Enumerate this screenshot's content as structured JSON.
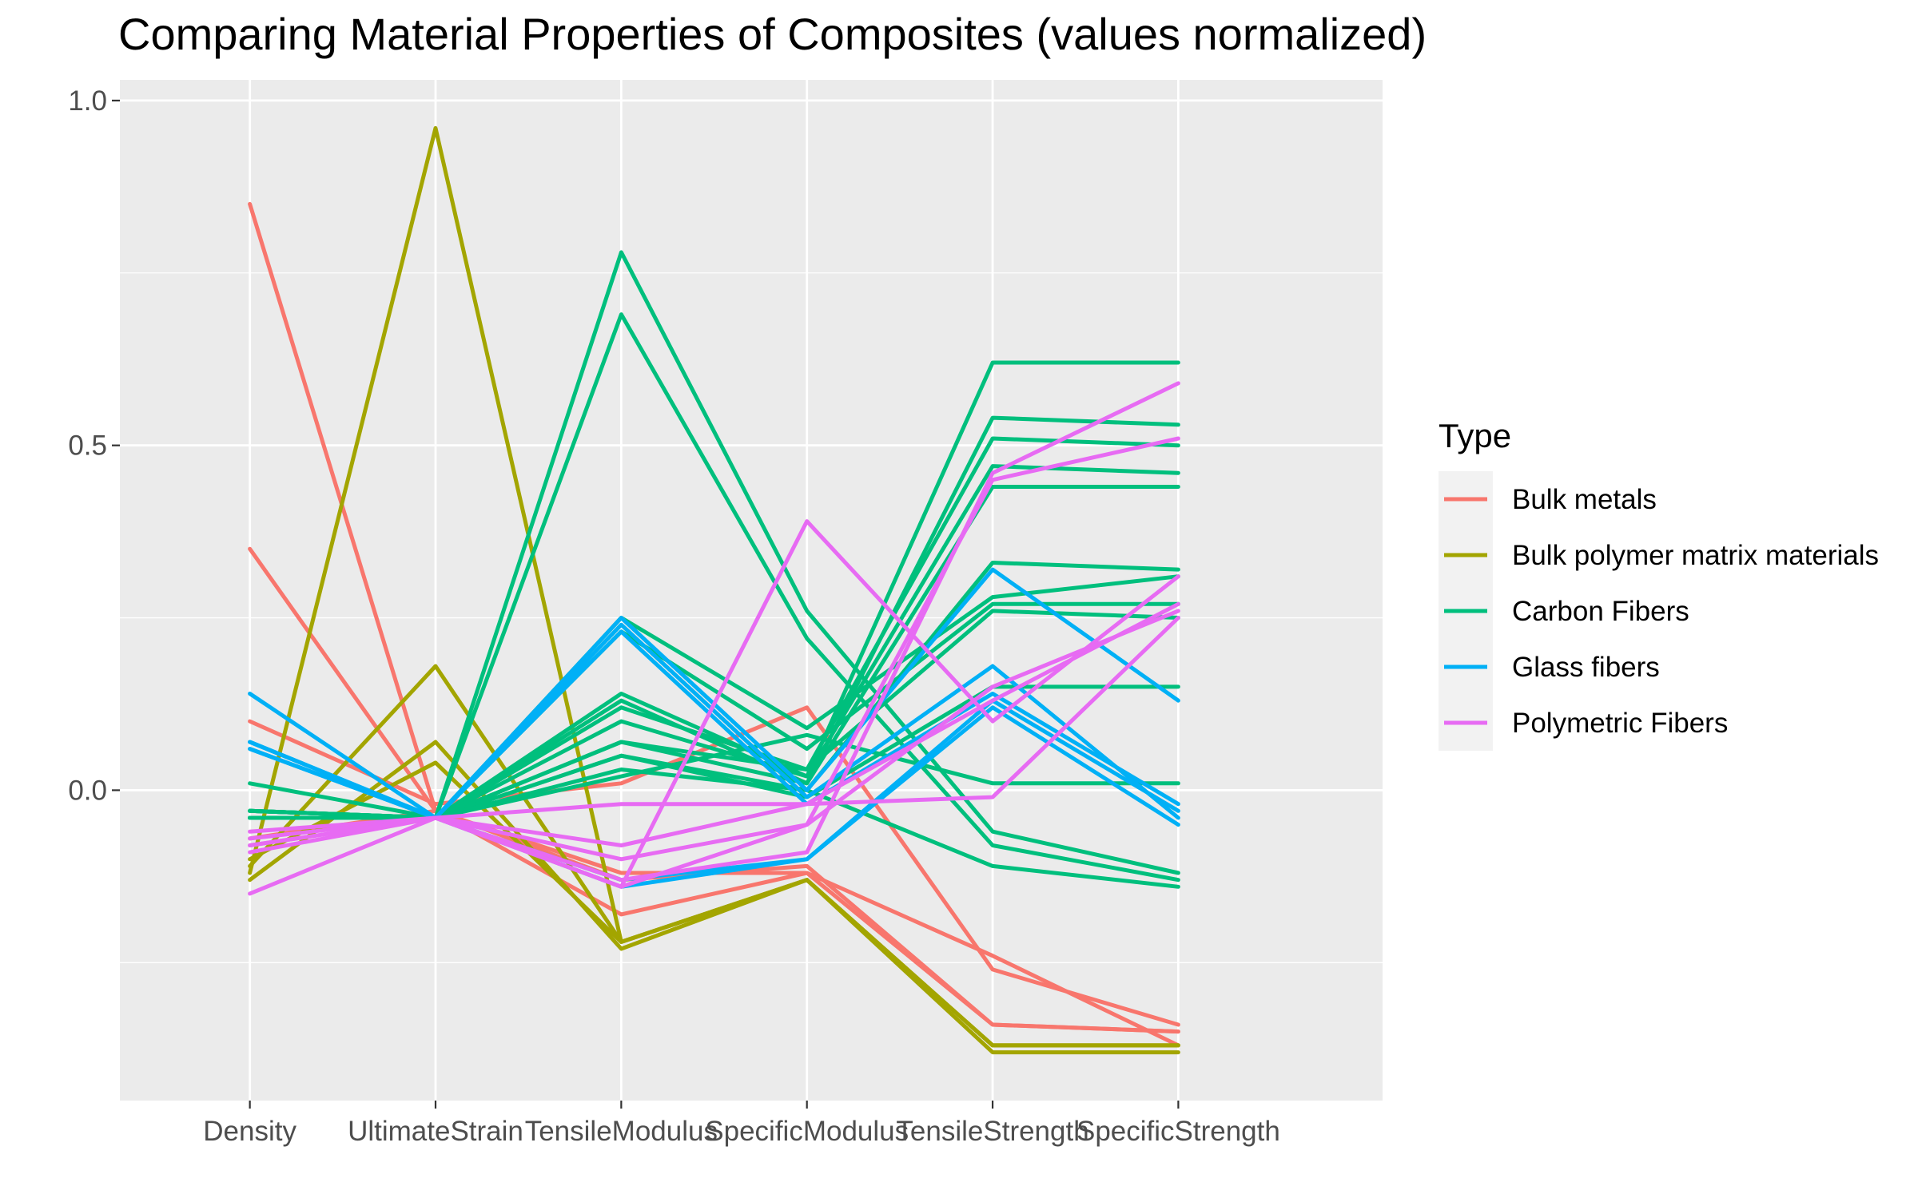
{
  "chart_data": {
    "type": "line",
    "title": "Comparing Material Properties of Composites (values normalized)",
    "xlabel": "",
    "ylabel": "",
    "categories": [
      "Density",
      "UltimateStrain",
      "TensileModulus",
      "SpecificModulus",
      "TensileStrength",
      "SpecificStrength"
    ],
    "y_ticks": [
      "0.0",
      "0.5",
      "1.0"
    ],
    "y_tick_values": [
      0.0,
      0.5,
      1.0
    ],
    "ylim": [
      -0.45,
      1.03
    ],
    "grid": true,
    "legend": {
      "title": "Type",
      "position": "right"
    },
    "series": [
      {
        "name": "Bulk metals",
        "color": "#F8766D",
        "lines": [
          [
            0.85,
            -0.03,
            -0.18,
            -0.12,
            -0.34,
            -0.35
          ],
          [
            0.35,
            -0.03,
            -0.13,
            -0.11,
            -0.34,
            -0.35
          ],
          [
            0.1,
            -0.02,
            0.01,
            0.12,
            -0.26,
            -0.34
          ],
          [
            -0.07,
            -0.03,
            -0.12,
            -0.12,
            -0.24,
            -0.37
          ]
        ]
      },
      {
        "name": "Bulk polymer matrix materials",
        "color": "#A3A500",
        "lines": [
          [
            -0.12,
            0.96,
            -0.22,
            -0.13,
            -0.37,
            -0.37
          ],
          [
            -0.11,
            0.18,
            -0.22,
            -0.13,
            -0.37,
            -0.37
          ],
          [
            -0.13,
            0.07,
            -0.23,
            -0.13,
            -0.38,
            -0.38
          ],
          [
            -0.1,
            0.04,
            -0.22,
            -0.13,
            -0.37,
            -0.37
          ]
        ]
      },
      {
        "name": "Carbon Fibers",
        "color": "#00BF7D",
        "lines": [
          [
            -0.04,
            -0.04,
            0.78,
            0.26,
            -0.06,
            -0.12
          ],
          [
            -0.04,
            -0.04,
            0.69,
            0.22,
            -0.08,
            -0.13
          ],
          [
            -0.03,
            -0.04,
            0.14,
            0.02,
            0.62,
            0.62
          ],
          [
            -0.04,
            -0.04,
            0.13,
            0.01,
            0.54,
            0.53
          ],
          [
            -0.03,
            -0.04,
            0.12,
            0.03,
            0.51,
            0.5
          ],
          [
            -0.04,
            -0.04,
            0.1,
            0.02,
            0.47,
            0.46
          ],
          [
            -0.03,
            -0.04,
            0.07,
            0.01,
            0.44,
            0.44
          ],
          [
            -0.04,
            -0.04,
            0.05,
            0.0,
            0.33,
            0.32
          ],
          [
            0.01,
            -0.04,
            0.25,
            0.09,
            0.28,
            0.31
          ],
          [
            -0.04,
            -0.04,
            0.23,
            0.06,
            0.27,
            0.27
          ],
          [
            -0.03,
            -0.04,
            0.07,
            0.03,
            0.26,
            0.25
          ],
          [
            -0.04,
            -0.04,
            0.05,
            -0.01,
            0.15,
            0.15
          ],
          [
            -0.03,
            -0.04,
            0.02,
            0.08,
            0.01,
            0.01
          ],
          [
            -0.04,
            -0.04,
            0.03,
            0.0,
            -0.11,
            -0.14
          ]
        ]
      },
      {
        "name": "Glass fibers",
        "color": "#00B0F6",
        "lines": [
          [
            0.14,
            -0.04,
            0.25,
            0.0,
            0.32,
            0.13
          ],
          [
            0.07,
            -0.04,
            0.24,
            -0.01,
            0.18,
            -0.04
          ],
          [
            0.06,
            -0.04,
            0.23,
            -0.02,
            0.14,
            -0.02
          ],
          [
            0.07,
            -0.04,
            -0.13,
            -0.1,
            0.12,
            -0.05
          ],
          [
            0.06,
            -0.04,
            -0.14,
            -0.1,
            0.13,
            -0.03
          ]
        ]
      },
      {
        "name": "Polymetric Fibers",
        "color": "#E76BF3",
        "lines": [
          [
            -0.06,
            -0.04,
            -0.14,
            0.39,
            0.1,
            0.31
          ],
          [
            -0.08,
            -0.04,
            -0.13,
            -0.09,
            0.46,
            0.59
          ],
          [
            -0.15,
            -0.04,
            -0.1,
            -0.05,
            0.45,
            0.51
          ],
          [
            -0.07,
            -0.04,
            -0.08,
            -0.02,
            0.13,
            0.27
          ],
          [
            -0.09,
            -0.04,
            -0.02,
            -0.02,
            -0.01,
            0.25
          ],
          [
            -0.08,
            -0.04,
            -0.14,
            -0.05,
            0.15,
            0.26
          ]
        ]
      }
    ]
  }
}
